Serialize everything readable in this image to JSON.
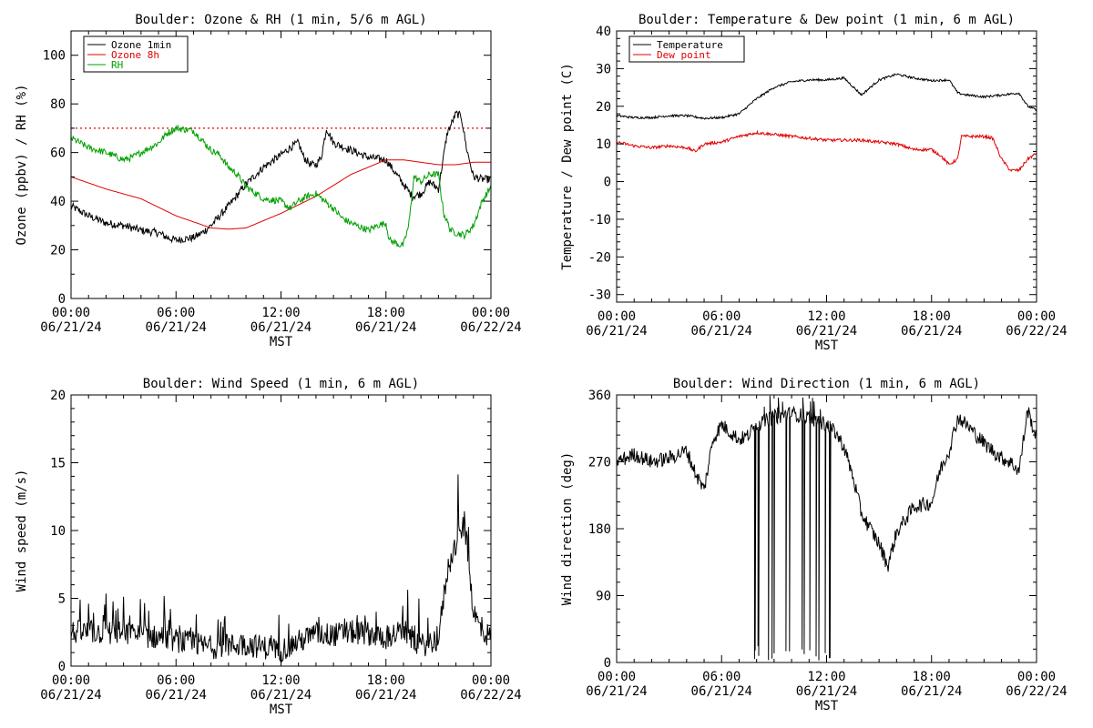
{
  "colors": {
    "black": "#000000",
    "red": "#e00000",
    "green": "#00a000"
  },
  "x_axis": {
    "ticks": [
      0,
      6,
      12,
      18,
      24
    ],
    "time_labels": [
      "00:00",
      "06:00",
      "12:00",
      "18:00",
      "00:00"
    ],
    "date_labels": [
      "06/21/24",
      "06/21/24",
      "06/21/24",
      "06/21/24",
      "06/22/24"
    ],
    "xlabel": "MST",
    "minor_step_hours": 1
  },
  "chart_data": [
    {
      "id": "ozone_rh",
      "type": "line",
      "title": "Boulder: Ozone & RH (1 min, 5/6 m AGL)",
      "ylabel": "Ozone (ppbv) / RH (%)",
      "xlabel": "MST",
      "xlim": [
        0,
        24
      ],
      "ylim": [
        0,
        110
      ],
      "yticks": [
        0,
        20,
        40,
        60,
        80,
        100
      ],
      "minor_step": 10,
      "show_xlabel": true,
      "legend": "top-left",
      "reference_line": {
        "y": 70,
        "color": "#e00000",
        "style": "dotted"
      },
      "series": [
        {
          "name": "Ozone 1min",
          "color": "#000000",
          "noise": 1.6,
          "x": [
            0,
            0.5,
            1,
            2,
            3,
            4,
            5,
            5.5,
            6,
            7,
            7.5,
            8,
            9,
            10,
            11,
            12,
            12.5,
            13,
            13.3,
            13.7,
            14,
            14.3,
            14.6,
            15,
            16,
            17,
            18,
            18.5,
            19,
            19.5,
            20,
            20.5,
            21,
            21.5,
            22,
            22.3,
            22.6,
            23,
            23.5,
            24
          ],
          "y": [
            38,
            36,
            34,
            31,
            30,
            28,
            27,
            25,
            24,
            25,
            27,
            30,
            38,
            47,
            54,
            59,
            62,
            64,
            58,
            55,
            55,
            58,
            70,
            64,
            61,
            58,
            57,
            52,
            47,
            42,
            43,
            48,
            45,
            68,
            76,
            75,
            62,
            50,
            49,
            49
          ]
        },
        {
          "name": "Ozone 8h",
          "color": "#e00000",
          "noise": 0,
          "x": [
            0,
            2,
            4,
            6,
            8,
            9,
            10,
            12,
            14,
            16,
            18,
            19,
            20,
            21,
            22,
            23,
            24
          ],
          "y": [
            50,
            45,
            41,
            34,
            29,
            28.5,
            29,
            35,
            42,
            51,
            57,
            57,
            56,
            55,
            55,
            56,
            56
          ]
        },
        {
          "name": "RH",
          "color": "#00a000",
          "noise": 1.4,
          "x": [
            0,
            0.5,
            1,
            2,
            3,
            3.5,
            4,
            5,
            5.5,
            6,
            7,
            8,
            8.5,
            9,
            9.5,
            10,
            11,
            12,
            12.5,
            13,
            13.5,
            14,
            15,
            15.5,
            16,
            17,
            17.5,
            18,
            18.2,
            18.8,
            19,
            19.3,
            19.6,
            20,
            20.5,
            21,
            21.3,
            21.7,
            22,
            22.5,
            23,
            23.5,
            24
          ],
          "y": [
            66,
            64,
            62,
            60,
            57,
            58,
            60,
            64,
            68,
            70,
            69,
            61,
            59,
            54,
            51,
            46,
            41,
            40,
            37,
            40,
            42,
            43,
            37,
            33,
            31,
            28,
            30,
            31,
            24,
            22,
            22,
            30,
            50,
            48,
            51,
            51,
            35,
            28,
            27,
            26,
            30,
            40,
            46
          ]
        }
      ]
    },
    {
      "id": "temp_dew",
      "type": "line",
      "title": "Boulder: Temperature & Dew point (1 min, 6 m AGL)",
      "ylabel": "Temperature / Dew point (C)",
      "xlabel": "MST",
      "xlim": [
        0,
        24
      ],
      "ylim": [
        -32,
        40
      ],
      "yticks": [
        -30,
        -20,
        -10,
        0,
        10,
        20,
        30,
        40
      ],
      "minor_step": 2,
      "show_xlabel": true,
      "legend": "top-left",
      "series": [
        {
          "name": "Temperature",
          "color": "#000000",
          "noise": 0.3,
          "x": [
            0,
            1,
            2,
            3,
            4,
            5,
            6,
            7,
            8,
            9,
            10,
            11,
            12,
            13,
            14,
            15,
            16,
            17,
            18,
            19,
            19.5,
            20,
            21,
            22,
            23,
            23.5,
            24
          ],
          "y": [
            17.5,
            17,
            17,
            17.5,
            17.5,
            16.8,
            17,
            18,
            22,
            25,
            26.5,
            27,
            27,
            27.5,
            23,
            27,
            28.5,
            27.5,
            26.8,
            27,
            23.5,
            23,
            22.5,
            23,
            23.5,
            20,
            19
          ]
        },
        {
          "name": "Dew point",
          "color": "#e00000",
          "noise": 0.4,
          "x": [
            0,
            1,
            2,
            3,
            4,
            4.5,
            5,
            6,
            7,
            8,
            9,
            10,
            11,
            12,
            13,
            14,
            15,
            16,
            17,
            18,
            18.5,
            19,
            19.5,
            19.7,
            20,
            21,
            21.5,
            22,
            22.5,
            23,
            23.5,
            24
          ],
          "y": [
            10.5,
            9.5,
            9,
            9.5,
            9,
            8,
            10,
            10.5,
            12,
            13,
            12.5,
            12,
            11.5,
            11,
            11,
            11,
            10.5,
            10,
            8.5,
            8.5,
            7,
            4.5,
            6,
            12,
            12,
            12,
            11.5,
            6,
            3,
            3,
            6,
            7.5
          ]
        }
      ]
    },
    {
      "id": "wind_speed",
      "type": "line",
      "title": "Boulder: Wind Speed (1 min, 6 m AGL)",
      "ylabel": "Wind speed (m/s)",
      "xlabel": "MST",
      "xlim": [
        0,
        24
      ],
      "ylim": [
        0,
        20
      ],
      "yticks": [
        0,
        5,
        10,
        15,
        20
      ],
      "minor_step": 1,
      "show_xlabel": true,
      "series": [
        {
          "name": "",
          "color": "#000000",
          "noise": 0.9,
          "x": [
            0,
            2,
            4,
            6,
            8,
            10,
            12,
            13,
            14,
            15,
            16,
            17,
            18,
            19,
            20,
            21,
            21.5,
            22,
            22.5,
            23,
            23.5,
            24
          ],
          "y": [
            2.5,
            2.5,
            2.3,
            1.9,
            1.4,
            1.6,
            1.2,
            1.8,
            2.4,
            2.3,
            2.5,
            2.4,
            2.1,
            2.6,
            1.5,
            2,
            7,
            9,
            10.5,
            4,
            2.5,
            2.2
          ]
        }
      ]
    },
    {
      "id": "wind_dir",
      "type": "line",
      "title": "Boulder: Wind Direction (1 min, 6 m AGL)",
      "ylabel": "Wind direction (deg)",
      "xlabel": "MST",
      "xlim": [
        0,
        24
      ],
      "ylim": [
        0,
        360
      ],
      "yticks": [
        0,
        90,
        180,
        270,
        360
      ],
      "minor_step": 18,
      "show_xlabel": true,
      "wrap_spikes": {
        "from": 7.8,
        "to": 12.3,
        "chance": 0.22,
        "min_span": 80
      },
      "series": [
        {
          "name": "",
          "color": "#000000",
          "noise": 10,
          "x": [
            0,
            1,
            2,
            3,
            4,
            4.5,
            5,
            5.5,
            6,
            6.5,
            7,
            7.5,
            8,
            9,
            10,
            11,
            12,
            12.5,
            13,
            13.5,
            14,
            15,
            15.5,
            16,
            17,
            18,
            18.5,
            19,
            19.5,
            20,
            21,
            22,
            22.5,
            23,
            23.5,
            24
          ],
          "y": [
            270,
            280,
            270,
            275,
            285,
            255,
            232,
            300,
            320,
            310,
            300,
            305,
            320,
            330,
            335,
            330,
            320,
            310,
            290,
            250,
            200,
            160,
            130,
            175,
            210,
            215,
            260,
            285,
            330,
            320,
            295,
            275,
            270,
            258,
            340,
            300
          ]
        }
      ]
    }
  ]
}
